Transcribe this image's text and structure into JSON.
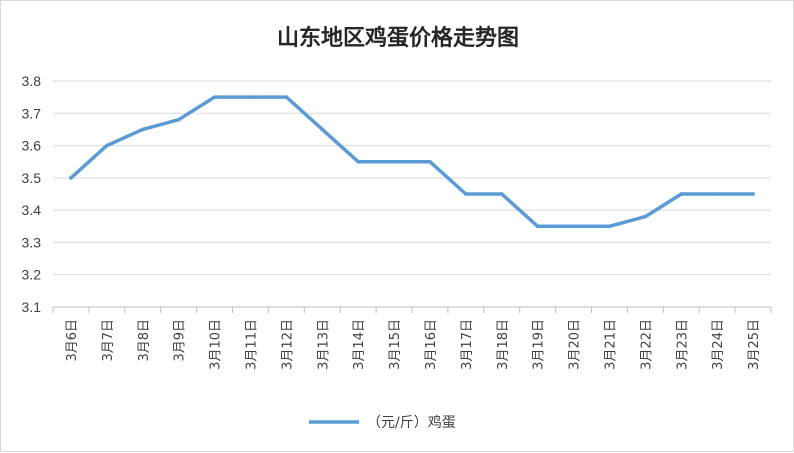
{
  "chart_data": {
    "type": "line",
    "title": "山东地区鸡蛋价格走势图",
    "categories": [
      "3月6日",
      "3月7日",
      "3月8日",
      "3月9日",
      "3月10日",
      "3月11日",
      "3月12日",
      "3月13日",
      "3月14日",
      "3月15日",
      "3月16日",
      "3月17日",
      "3月18日",
      "3月19日",
      "3月20日",
      "3月21日",
      "3月22日",
      "3月23日",
      "3月24日",
      "3月25日"
    ],
    "series": [
      {
        "name": "（元/斤）鸡蛋",
        "color": "#5B9BD5",
        "values": [
          3.5,
          3.6,
          3.65,
          3.68,
          3.75,
          3.75,
          3.75,
          3.65,
          3.55,
          3.55,
          3.55,
          3.45,
          3.45,
          3.35,
          3.35,
          3.35,
          3.38,
          3.45,
          3.45,
          3.45
        ]
      }
    ],
    "ylim": [
      3.1,
      3.8
    ],
    "yticks": [
      "3.1",
      "3.2",
      "3.3",
      "3.4",
      "3.5",
      "3.6",
      "3.7",
      "3.8"
    ],
    "grid": true,
    "legend_position": "bottom"
  }
}
